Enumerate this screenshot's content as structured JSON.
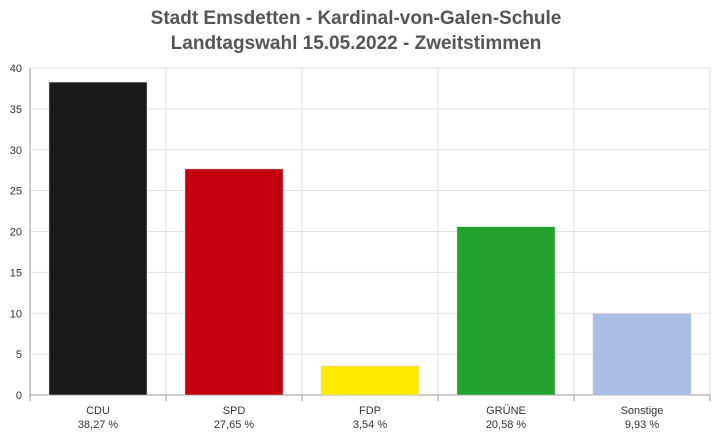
{
  "chart_data": {
    "type": "bar",
    "title": "Stadt Emsdetten - Kardinal-von-Galen-Schule",
    "subtitle": "Landtagswahl 15.05.2022  - Zweitstimmen",
    "categories": [
      "CDU",
      "SPD",
      "FDP",
      "GRÜNE",
      "Sonstige"
    ],
    "value_labels": [
      "38,27 %",
      "27,65 %",
      "3,54 %",
      "20,58 %",
      "9,93 %"
    ],
    "values": [
      38.27,
      27.65,
      3.54,
      20.58,
      9.93
    ],
    "colors": [
      "#1a1a1a",
      "#c40010",
      "#ffea00",
      "#21a12e",
      "#aabde3"
    ],
    "ylim": [
      0,
      40
    ],
    "yticks": [
      "0",
      "5",
      "10",
      "15",
      "20",
      "25",
      "30",
      "35",
      "40"
    ],
    "grid": true,
    "legend": "none",
    "xlabel": "",
    "ylabel": ""
  }
}
